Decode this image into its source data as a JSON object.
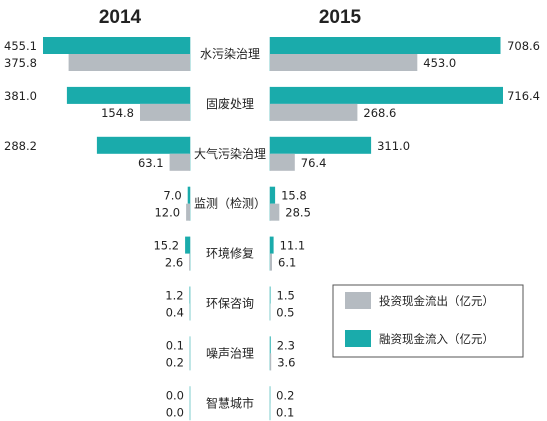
{
  "chart_data": {
    "type": "bar",
    "orientation": "horizontal-mirrored",
    "panels": [
      "2014",
      "2015"
    ],
    "categories": [
      "水污染治理",
      "固废处理",
      "大气污染治理",
      "监测（检测）",
      "环境修复",
      "环保咨询",
      "噪声治理",
      "智慧城市"
    ],
    "series": [
      {
        "name": "融资现金流入（亿元）",
        "color": "#1aabab",
        "values_2014": [
          "455.1",
          "381.0",
          "288.2",
          "7.0",
          "15.2",
          "1.2",
          "0.1",
          "0.0"
        ],
        "values_2015": [
          "708.6",
          "716.4",
          "311.0",
          "15.8",
          "11.1",
          "1.5",
          "2.3",
          "0.2"
        ]
      },
      {
        "name": "投资现金流出（亿元）",
        "color": "#b5bbc1",
        "values_2014": [
          "375.8",
          "154.8",
          "63.1",
          "12.0",
          "2.6",
          "0.4",
          "0.2",
          "0.0"
        ],
        "values_2015": [
          "453.0",
          "268.6",
          "76.4",
          "28.5",
          "6.1",
          "0.5",
          "3.6",
          "0.1"
        ]
      }
    ],
    "legend": {
      "position": "right",
      "items": [
        "投资现金流出（亿元）",
        "融资现金流入（亿元）"
      ]
    },
    "grid": false
  }
}
